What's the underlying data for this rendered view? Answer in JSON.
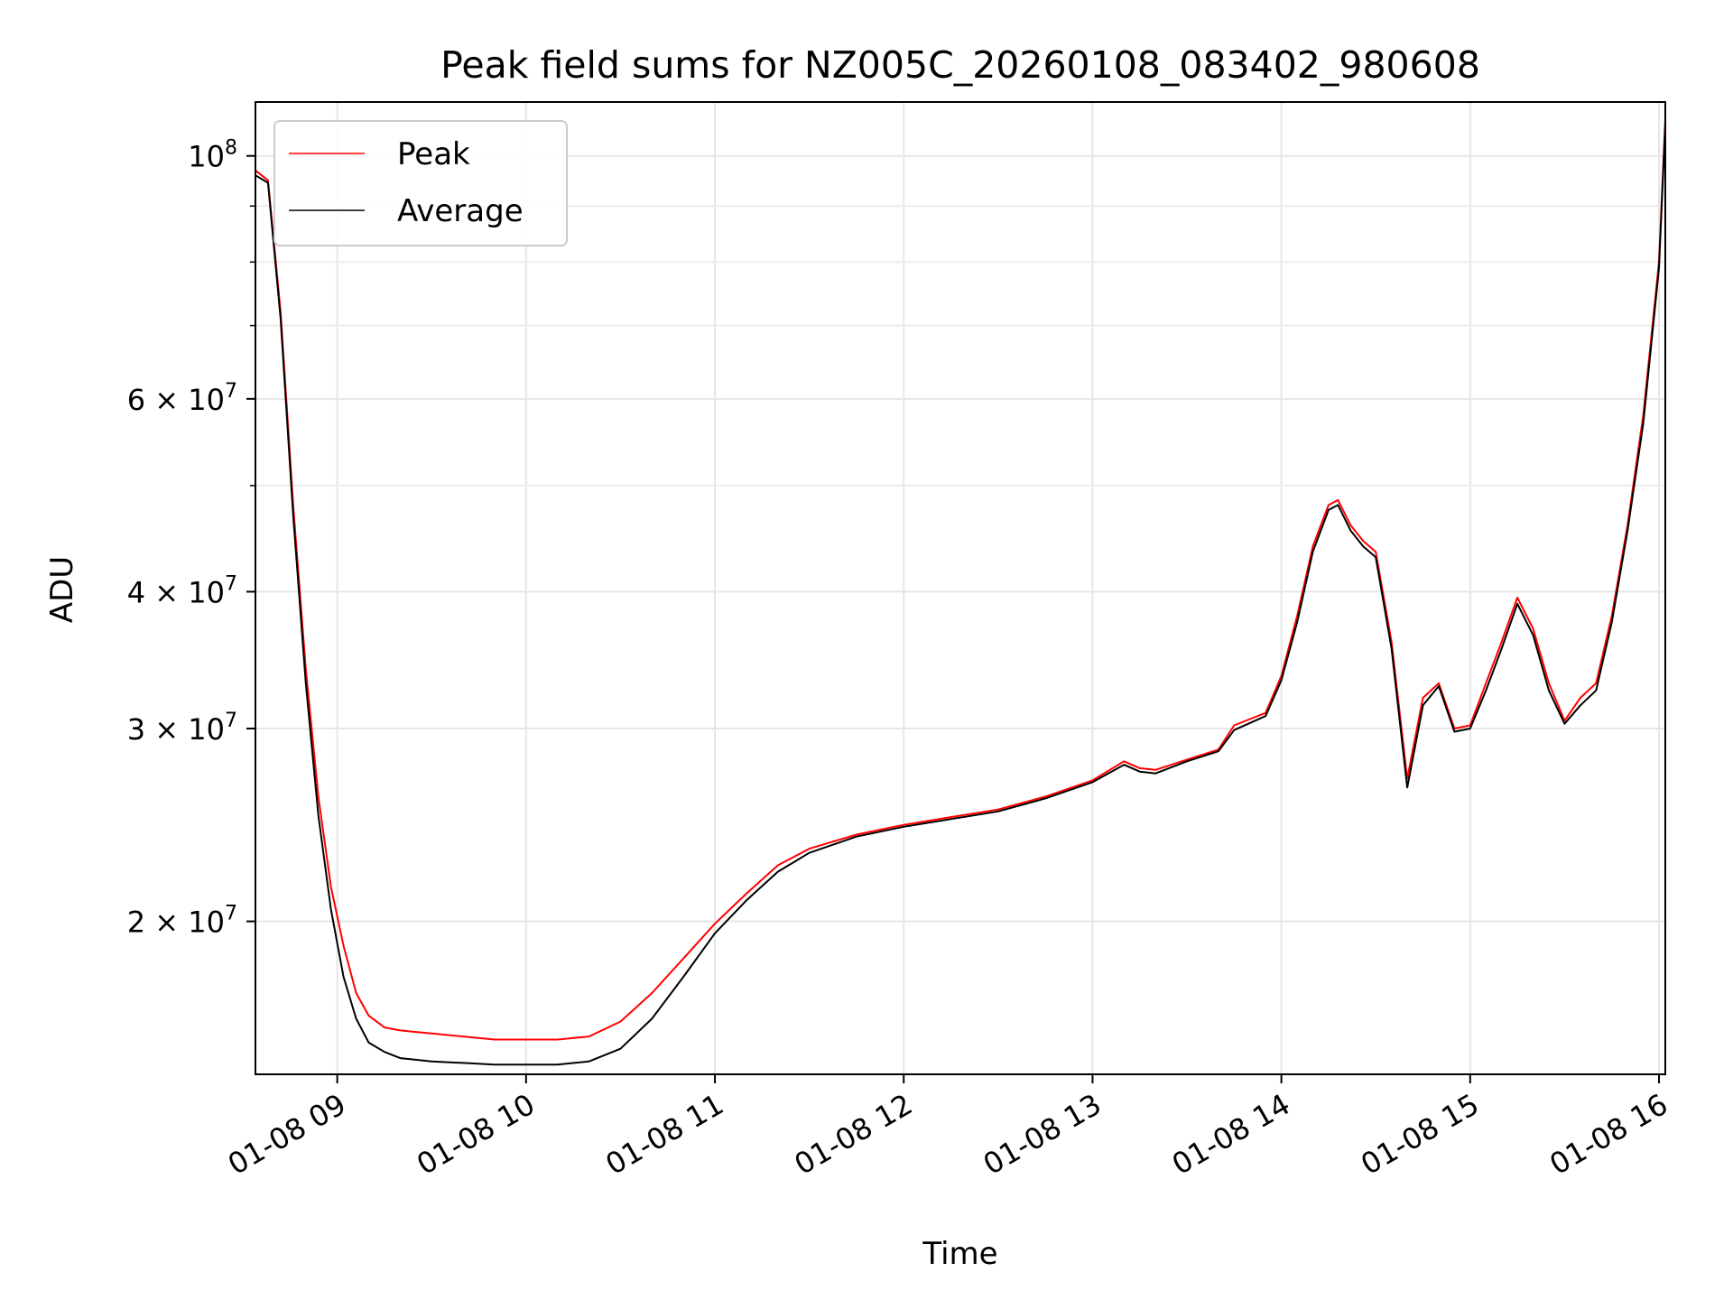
{
  "chart_data": {
    "type": "line",
    "title": "Peak field sums for NZ005C_20260108_083402_980608",
    "xlabel": "Time",
    "ylabel": "ADU",
    "y_scale": "log",
    "ylim": [
      14500000,
      112000000
    ],
    "xlim": [
      "2026-01-08 08:34",
      "2026-01-08 16:02"
    ],
    "grid": true,
    "legend_position": "upper-left",
    "x_tick_labels": [
      "01-08 09",
      "01-08 10",
      "01-08 11",
      "01-08 12",
      "01-08 13",
      "01-08 14",
      "01-08 15",
      "01-08 16"
    ],
    "x_tick_times": [
      "2026-01-08 09:00",
      "2026-01-08 10:00",
      "2026-01-08 11:00",
      "2026-01-08 12:00",
      "2026-01-08 13:00",
      "2026-01-08 14:00",
      "2026-01-08 15:00",
      "2026-01-08 16:00"
    ],
    "y_ticks": [
      {
        "value": 20000000,
        "mantissa": "2",
        "exponent": "7"
      },
      {
        "value": 30000000,
        "mantissa": "3",
        "exponent": "7"
      },
      {
        "value": 40000000,
        "mantissa": "4",
        "exponent": "7"
      },
      {
        "value": 60000000,
        "mantissa": "6",
        "exponent": "7"
      },
      {
        "value": 100000000,
        "mantissa": "",
        "exponent": "8"
      }
    ],
    "y_tick_base": "10",
    "y_tick_times": "×",
    "y_minor_ticks": [
      50000000,
      70000000,
      80000000,
      90000000
    ],
    "series": [
      {
        "name": "Peak",
        "color": "#ff0000",
        "x": [
          "2026-01-08 08:34",
          "2026-01-08 08:38",
          "2026-01-08 08:42",
          "2026-01-08 08:46",
          "2026-01-08 08:50",
          "2026-01-08 08:54",
          "2026-01-08 08:58",
          "2026-01-08 09:02",
          "2026-01-08 09:06",
          "2026-01-08 09:10",
          "2026-01-08 09:15",
          "2026-01-08 09:20",
          "2026-01-08 09:25",
          "2026-01-08 09:30",
          "2026-01-08 09:40",
          "2026-01-08 09:50",
          "2026-01-08 10:00",
          "2026-01-08 10:10",
          "2026-01-08 10:20",
          "2026-01-08 10:30",
          "2026-01-08 10:40",
          "2026-01-08 10:50",
          "2026-01-08 11:00",
          "2026-01-08 11:10",
          "2026-01-08 11:20",
          "2026-01-08 11:30",
          "2026-01-08 11:45",
          "2026-01-08 12:00",
          "2026-01-08 12:15",
          "2026-01-08 12:30",
          "2026-01-08 12:45",
          "2026-01-08 13:00",
          "2026-01-08 13:10",
          "2026-01-08 13:15",
          "2026-01-08 13:20",
          "2026-01-08 13:30",
          "2026-01-08 13:40",
          "2026-01-08 13:45",
          "2026-01-08 13:55",
          "2026-01-08 14:00",
          "2026-01-08 14:05",
          "2026-01-08 14:10",
          "2026-01-08 14:15",
          "2026-01-08 14:18",
          "2026-01-08 14:22",
          "2026-01-08 14:26",
          "2026-01-08 14:30",
          "2026-01-08 14:35",
          "2026-01-08 14:40",
          "2026-01-08 14:45",
          "2026-01-08 14:50",
          "2026-01-08 14:55",
          "2026-01-08 15:00",
          "2026-01-08 15:05",
          "2026-01-08 15:10",
          "2026-01-08 15:15",
          "2026-01-08 15:20",
          "2026-01-08 15:25",
          "2026-01-08 15:30",
          "2026-01-08 15:35",
          "2026-01-08 15:40",
          "2026-01-08 15:45",
          "2026-01-08 15:50",
          "2026-01-08 15:55",
          "2026-01-08 16:00",
          "2026-01-08 16:02"
        ],
        "y": [
          97000000,
          95000000,
          72000000,
          48000000,
          34000000,
          26000000,
          21500000,
          19000000,
          17200000,
          16400000,
          16000000,
          15900000,
          15850000,
          15800000,
          15700000,
          15600000,
          15600000,
          15600000,
          15700000,
          16200000,
          17200000,
          18500000,
          19900000,
          21200000,
          22500000,
          23300000,
          24000000,
          24500000,
          24900000,
          25300000,
          26000000,
          26900000,
          28000000,
          27600000,
          27500000,
          28100000,
          28700000,
          30200000,
          31000000,
          33500000,
          38000000,
          44000000,
          48000000,
          48500000,
          46000000,
          44500000,
          43500000,
          36000000,
          27000000,
          32000000,
          33000000,
          30000000,
          30200000,
          33000000,
          36000000,
          39500000,
          37000000,
          33000000,
          30500000,
          32000000,
          33000000,
          38000000,
          46000000,
          58000000,
          80000000,
          108000000
        ]
      },
      {
        "name": "Average",
        "color": "#000000",
        "x": [
          "2026-01-08 08:34",
          "2026-01-08 08:38",
          "2026-01-08 08:42",
          "2026-01-08 08:46",
          "2026-01-08 08:50",
          "2026-01-08 08:54",
          "2026-01-08 08:58",
          "2026-01-08 09:02",
          "2026-01-08 09:06",
          "2026-01-08 09:10",
          "2026-01-08 09:15",
          "2026-01-08 09:20",
          "2026-01-08 09:25",
          "2026-01-08 09:30",
          "2026-01-08 09:40",
          "2026-01-08 09:50",
          "2026-01-08 10:00",
          "2026-01-08 10:10",
          "2026-01-08 10:20",
          "2026-01-08 10:30",
          "2026-01-08 10:40",
          "2026-01-08 10:50",
          "2026-01-08 11:00",
          "2026-01-08 11:10",
          "2026-01-08 11:20",
          "2026-01-08 11:30",
          "2026-01-08 11:45",
          "2026-01-08 12:00",
          "2026-01-08 12:15",
          "2026-01-08 12:30",
          "2026-01-08 12:45",
          "2026-01-08 13:00",
          "2026-01-08 13:10",
          "2026-01-08 13:15",
          "2026-01-08 13:20",
          "2026-01-08 13:30",
          "2026-01-08 13:40",
          "2026-01-08 13:45",
          "2026-01-08 13:55",
          "2026-01-08 14:00",
          "2026-01-08 14:05",
          "2026-01-08 14:10",
          "2026-01-08 14:15",
          "2026-01-08 14:18",
          "2026-01-08 14:22",
          "2026-01-08 14:26",
          "2026-01-08 14:30",
          "2026-01-08 14:35",
          "2026-01-08 14:40",
          "2026-01-08 14:45",
          "2026-01-08 14:50",
          "2026-01-08 14:55",
          "2026-01-08 15:00",
          "2026-01-08 15:05",
          "2026-01-08 15:10",
          "2026-01-08 15:15",
          "2026-01-08 15:20",
          "2026-01-08 15:25",
          "2026-01-08 15:30",
          "2026-01-08 15:35",
          "2026-01-08 15:40",
          "2026-01-08 15:45",
          "2026-01-08 15:50",
          "2026-01-08 15:55",
          "2026-01-08 16:00",
          "2026-01-08 16:02"
        ],
        "y": [
          96000000,
          94500000,
          71000000,
          47000000,
          33000000,
          25000000,
          20500000,
          17800000,
          16300000,
          15500000,
          15200000,
          15000000,
          14950000,
          14900000,
          14850000,
          14800000,
          14800000,
          14800000,
          14900000,
          15300000,
          16300000,
          17800000,
          19500000,
          20900000,
          22200000,
          23100000,
          23900000,
          24400000,
          24800000,
          25200000,
          25900000,
          26800000,
          27800000,
          27400000,
          27300000,
          28000000,
          28600000,
          29900000,
          30800000,
          33200000,
          37500000,
          43500000,
          47500000,
          48000000,
          45500000,
          44000000,
          43000000,
          35500000,
          26500000,
          31500000,
          32800000,
          29800000,
          30000000,
          32500000,
          35500000,
          39000000,
          36500000,
          32500000,
          30300000,
          31500000,
          32500000,
          37500000,
          45500000,
          57000000,
          79000000,
          107000000
        ]
      }
    ]
  }
}
